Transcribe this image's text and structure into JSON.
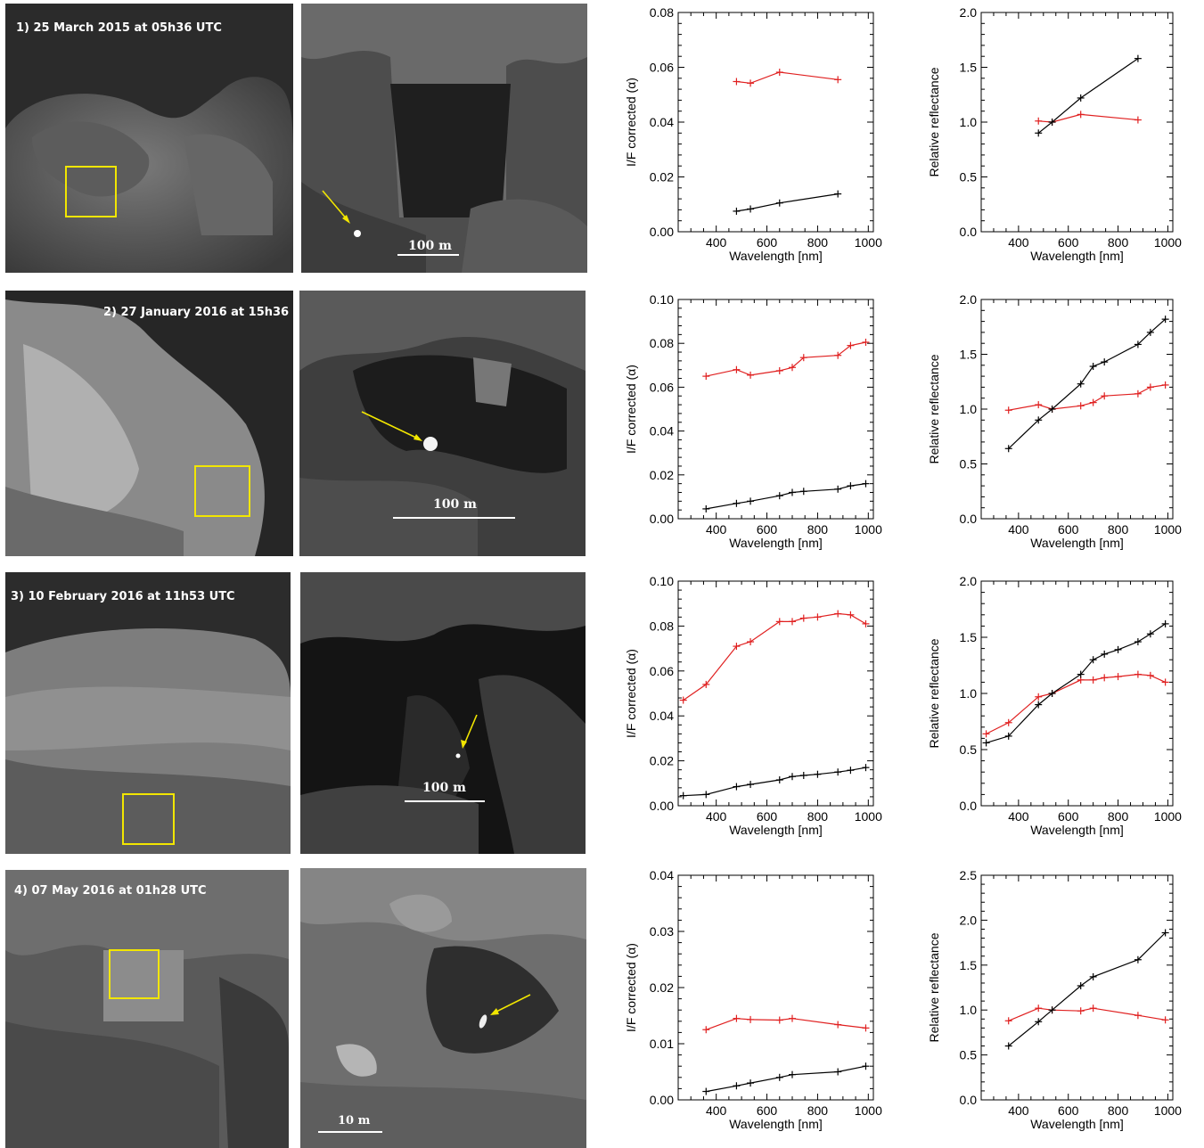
{
  "rows": [
    {
      "label": "1) 25 March 2015 at 05h36 UTC",
      "scale": "100 m",
      "panels": {
        "if": {
          "ylabel": "I/F corrected (α)",
          "xlabel": "Wavelength [nm]",
          "ylim": [
            0,
            0.08
          ],
          "yticks": [
            "0.00",
            "0.02",
            "0.04",
            "0.06",
            "0.08"
          ],
          "xlim": [
            250,
            1020
          ],
          "xticks": [
            "400",
            "600",
            "800",
            "1000"
          ]
        },
        "rel": {
          "ylabel": "Relative reflectance",
          "xlabel": "Wavelength [nm]",
          "ylim": [
            0,
            2.0
          ],
          "yticks": [
            "0.0",
            "0.5",
            "1.0",
            "1.5",
            "2.0"
          ],
          "xlim": [
            250,
            1020
          ],
          "xticks": [
            "400",
            "600",
            "800",
            "1000"
          ]
        }
      }
    },
    {
      "label": "2) 27 January 2016 at 15h36 UTC",
      "scale": "100 m",
      "panels": {
        "if": {
          "ylabel": "I/F corrected (α)",
          "xlabel": "Wavelength [nm]",
          "ylim": [
            0,
            0.1
          ],
          "yticks": [
            "0.00",
            "0.02",
            "0.04",
            "0.06",
            "0.08",
            "0.10"
          ],
          "xlim": [
            250,
            1020
          ],
          "xticks": [
            "400",
            "600",
            "800",
            "1000"
          ]
        },
        "rel": {
          "ylabel": "Relative reflectance",
          "xlabel": "Wavelength [nm]",
          "ylim": [
            0,
            2.0
          ],
          "yticks": [
            "0.0",
            "0.5",
            "1.0",
            "1.5",
            "2.0"
          ],
          "xlim": [
            250,
            1020
          ],
          "xticks": [
            "400",
            "600",
            "800",
            "1000"
          ]
        }
      }
    },
    {
      "label": "3) 10 February 2016 at 11h53 UTC",
      "scale": "100 m",
      "panels": {
        "if": {
          "ylabel": "I/F corrected (α)",
          "xlabel": "Wavelength [nm]",
          "ylim": [
            0,
            0.1
          ],
          "yticks": [
            "0.00",
            "0.02",
            "0.04",
            "0.06",
            "0.08",
            "0.10"
          ],
          "xlim": [
            250,
            1020
          ],
          "xticks": [
            "400",
            "600",
            "800",
            "1000"
          ]
        },
        "rel": {
          "ylabel": "Relative reflectance",
          "xlabel": "Wavelength [nm]",
          "ylim": [
            0,
            2.0
          ],
          "yticks": [
            "0.0",
            "0.5",
            "1.0",
            "1.5",
            "2.0"
          ],
          "xlim": [
            250,
            1020
          ],
          "xticks": [
            "400",
            "600",
            "800",
            "1000"
          ]
        }
      }
    },
    {
      "label": "4) 07 May 2016 at 01h28 UTC",
      "scale": "10 m",
      "panels": {
        "if": {
          "ylabel": "I/F corrected (α)",
          "xlabel": "Wavelength [nm]",
          "ylim": [
            0,
            0.04
          ],
          "yticks": [
            "0.00",
            "0.01",
            "0.02",
            "0.03",
            "0.04"
          ],
          "xlim": [
            250,
            1020
          ],
          "xticks": [
            "400",
            "600",
            "800",
            "1000"
          ]
        },
        "rel": {
          "ylabel": "Relative reflectance",
          "xlabel": "Wavelength [nm]",
          "ylim": [
            0,
            2.5
          ],
          "yticks": [
            "0.0",
            "0.5",
            "1.0",
            "1.5",
            "2.0",
            "2.5"
          ],
          "xlim": [
            250,
            1020
          ],
          "xticks": [
            "400",
            "600",
            "800",
            "1000"
          ]
        }
      }
    }
  ],
  "colors": {
    "bright_spot": "#e02020",
    "surrounding": "#000000",
    "box": "#f2e600",
    "arrow": "#f2e600"
  },
  "chart_data": [
    {
      "type": "line",
      "panel": "1-if",
      "xlabel": "Wavelength [nm]",
      "ylabel": "I/F corrected (α)",
      "ylim": [
        0,
        0.08
      ],
      "series": [
        {
          "color": "#e02020",
          "x": [
            480,
            535,
            650,
            880
          ],
          "y": [
            0.0548,
            0.0542,
            0.0582,
            0.0555
          ]
        },
        {
          "color": "#000000",
          "x": [
            480,
            535,
            650,
            880
          ],
          "y": [
            0.0075,
            0.0083,
            0.0105,
            0.0138
          ]
        }
      ]
    },
    {
      "type": "line",
      "panel": "1-rel",
      "xlabel": "Wavelength [nm]",
      "ylabel": "Relative reflectance",
      "ylim": [
        0,
        2.0
      ],
      "series": [
        {
          "color": "#e02020",
          "x": [
            480,
            535,
            650,
            880
          ],
          "y": [
            1.01,
            1.0,
            1.07,
            1.02
          ]
        },
        {
          "color": "#000000",
          "x": [
            480,
            535,
            650,
            880
          ],
          "y": [
            0.9,
            1.0,
            1.22,
            1.58
          ]
        }
      ]
    },
    {
      "type": "line",
      "panel": "2-if",
      "xlabel": "Wavelength [nm]",
      "ylabel": "I/F corrected (α)",
      "ylim": [
        0,
        0.1
      ],
      "series": [
        {
          "color": "#e02020",
          "x": [
            360,
            480,
            535,
            650,
            700,
            745,
            880,
            930,
            990
          ],
          "y": [
            0.065,
            0.068,
            0.0655,
            0.0675,
            0.069,
            0.0735,
            0.0745,
            0.079,
            0.0805
          ]
        },
        {
          "color": "#000000",
          "x": [
            360,
            480,
            535,
            650,
            700,
            745,
            880,
            930,
            990
          ],
          "y": [
            0.0045,
            0.007,
            0.008,
            0.0105,
            0.012,
            0.0125,
            0.0135,
            0.015,
            0.016
          ]
        }
      ]
    },
    {
      "type": "line",
      "panel": "2-rel",
      "xlabel": "Wavelength [nm]",
      "ylabel": "Relative reflectance",
      "ylim": [
        0,
        2.0
      ],
      "series": [
        {
          "color": "#e02020",
          "x": [
            360,
            480,
            535,
            650,
            700,
            745,
            880,
            930,
            990
          ],
          "y": [
            0.99,
            1.04,
            1.0,
            1.03,
            1.06,
            1.12,
            1.14,
            1.2,
            1.22
          ]
        },
        {
          "color": "#000000",
          "x": [
            360,
            480,
            535,
            650,
            700,
            745,
            880,
            930,
            990
          ],
          "y": [
            0.64,
            0.9,
            1.0,
            1.23,
            1.39,
            1.43,
            1.59,
            1.7,
            1.82
          ]
        }
      ]
    },
    {
      "type": "line",
      "panel": "3-if",
      "xlabel": "Wavelength [nm]",
      "ylabel": "I/F corrected (α)",
      "ylim": [
        0,
        0.1
      ],
      "series": [
        {
          "color": "#e02020",
          "x": [
            270,
            360,
            480,
            535,
            650,
            700,
            745,
            800,
            880,
            930,
            990
          ],
          "y": [
            0.047,
            0.054,
            0.071,
            0.073,
            0.082,
            0.082,
            0.0835,
            0.084,
            0.0855,
            0.085,
            0.081
          ]
        },
        {
          "color": "#000000",
          "x": [
            270,
            360,
            480,
            535,
            650,
            700,
            745,
            800,
            880,
            930,
            990
          ],
          "y": [
            0.0045,
            0.005,
            0.0085,
            0.0095,
            0.0115,
            0.013,
            0.0135,
            0.014,
            0.015,
            0.0158,
            0.017
          ]
        }
      ]
    },
    {
      "type": "line",
      "panel": "3-rel",
      "xlabel": "Wavelength [nm]",
      "ylabel": "Relative reflectance",
      "ylim": [
        0,
        2.0
      ],
      "series": [
        {
          "color": "#e02020",
          "x": [
            270,
            360,
            480,
            535,
            650,
            700,
            745,
            800,
            880,
            930,
            990
          ],
          "y": [
            0.64,
            0.74,
            0.97,
            1.0,
            1.12,
            1.12,
            1.14,
            1.15,
            1.17,
            1.16,
            1.1
          ]
        },
        {
          "color": "#000000",
          "x": [
            270,
            360,
            480,
            535,
            650,
            700,
            745,
            800,
            880,
            930,
            990
          ],
          "y": [
            0.56,
            0.62,
            0.9,
            1.0,
            1.17,
            1.3,
            1.35,
            1.39,
            1.46,
            1.53,
            1.62
          ]
        }
      ]
    },
    {
      "type": "line",
      "panel": "4-if",
      "xlabel": "Wavelength [nm]",
      "ylabel": "I/F corrected (α)",
      "ylim": [
        0,
        0.04
      ],
      "series": [
        {
          "color": "#e02020",
          "x": [
            360,
            480,
            535,
            650,
            700,
            880,
            990
          ],
          "y": [
            0.0125,
            0.0145,
            0.0143,
            0.0142,
            0.0145,
            0.0134,
            0.0128
          ]
        },
        {
          "color": "#000000",
          "x": [
            360,
            480,
            535,
            650,
            700,
            880,
            990
          ],
          "y": [
            0.0015,
            0.0025,
            0.003,
            0.004,
            0.0045,
            0.005,
            0.006
          ]
        }
      ]
    },
    {
      "type": "line",
      "panel": "4-rel",
      "xlabel": "Wavelength [nm]",
      "ylabel": "Relative reflectance",
      "ylim": [
        0,
        2.5
      ],
      "series": [
        {
          "color": "#e02020",
          "x": [
            360,
            480,
            535,
            650,
            700,
            880,
            990
          ],
          "y": [
            0.88,
            1.02,
            1.0,
            0.99,
            1.02,
            0.94,
            0.89
          ]
        },
        {
          "color": "#000000",
          "x": [
            360,
            480,
            535,
            650,
            700,
            880,
            990
          ],
          "y": [
            0.6,
            0.87,
            1.0,
            1.27,
            1.37,
            1.56,
            1.86
          ]
        }
      ]
    }
  ]
}
